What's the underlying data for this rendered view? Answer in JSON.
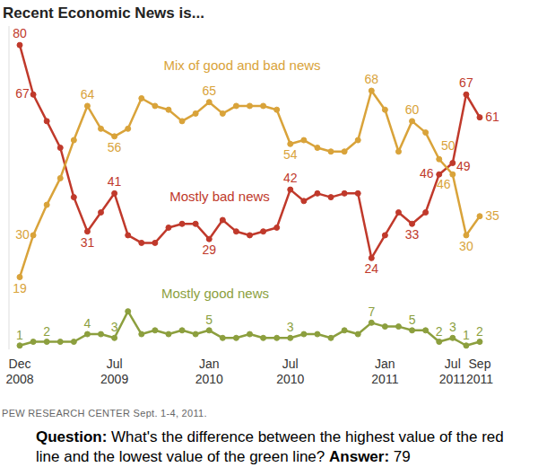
{
  "chart_data": {
    "type": "line",
    "title": "Recent Economic News is...",
    "categories": [
      "Dec 2008",
      null,
      null,
      null,
      null,
      null,
      null,
      "Jul 2009",
      null,
      null,
      null,
      null,
      null,
      null,
      "Jan 2010",
      null,
      null,
      null,
      null,
      null,
      "Jul 2010",
      null,
      null,
      null,
      null,
      null,
      null,
      "Jan 2011",
      null,
      null,
      null,
      null,
      "Jul 2011",
      null,
      "Sep 2011"
    ],
    "series": [
      {
        "name": "Mostly bad news",
        "color": "#c0392b",
        "marker": "circle",
        "values": [
          80,
          67,
          60,
          53,
          40,
          31,
          36,
          41,
          30,
          28,
          28,
          32,
          33,
          33,
          29,
          34,
          31,
          30,
          31,
          32,
          42,
          39,
          41,
          40,
          41,
          41,
          24,
          30,
          36,
          33,
          36,
          46,
          49,
          67,
          61
        ],
        "value_labels": [
          "80",
          "67",
          null,
          null,
          null,
          "31",
          null,
          "41",
          null,
          null,
          null,
          null,
          null,
          null,
          "29",
          null,
          null,
          null,
          null,
          null,
          "42",
          null,
          null,
          null,
          null,
          null,
          "24",
          null,
          null,
          "33",
          null,
          "46",
          "49",
          "67",
          "61"
        ]
      },
      {
        "name": "Mix of good and bad news",
        "color": "#d9a33a",
        "marker": "circle",
        "values": [
          19,
          30,
          38,
          45,
          55,
          64,
          58,
          56,
          58,
          66,
          64,
          63,
          60,
          62,
          65,
          62,
          64,
          64,
          64,
          63,
          54,
          55,
          53,
          52,
          52,
          55,
          68,
          63,
          52,
          60,
          57,
          50,
          46,
          30,
          35
        ],
        "value_labels": [
          "19",
          "30",
          null,
          null,
          null,
          "64",
          null,
          "56",
          null,
          null,
          null,
          null,
          null,
          null,
          "65",
          null,
          null,
          null,
          null,
          null,
          "54",
          null,
          null,
          null,
          null,
          null,
          "68",
          null,
          null,
          "60",
          null,
          "50",
          "46",
          "30",
          "35"
        ]
      },
      {
        "name": "Mostly good news",
        "color": "#8c9f3e",
        "marker": "circle",
        "values": [
          1,
          2,
          2,
          2,
          2,
          4,
          4,
          3,
          10,
          4,
          5,
          4,
          5,
          4,
          5,
          3,
          3,
          4,
          3,
          3,
          3,
          4,
          4,
          3,
          5,
          4,
          7,
          6,
          6,
          5,
          5,
          2,
          3,
          1,
          2
        ],
        "value_labels": [
          "1",
          null,
          "2",
          null,
          null,
          "4",
          null,
          "3",
          null,
          null,
          null,
          null,
          null,
          null,
          "5",
          null,
          null,
          null,
          null,
          null,
          "3",
          null,
          null,
          null,
          null,
          null,
          "7",
          null,
          null,
          "5",
          null,
          "2",
          "3",
          "1",
          "2"
        ]
      }
    ],
    "ylim": [
      0,
      85
    ],
    "grid": false,
    "tick_labels": "x",
    "source": "PEW RESEARCH CENTER Sept. 1-4, 2011.",
    "question_label": "Question:",
    "question": "What's the difference between the highest value of the red line and the lowest value of the green line?",
    "answer_label": "Answer:",
    "answer": "79"
  }
}
